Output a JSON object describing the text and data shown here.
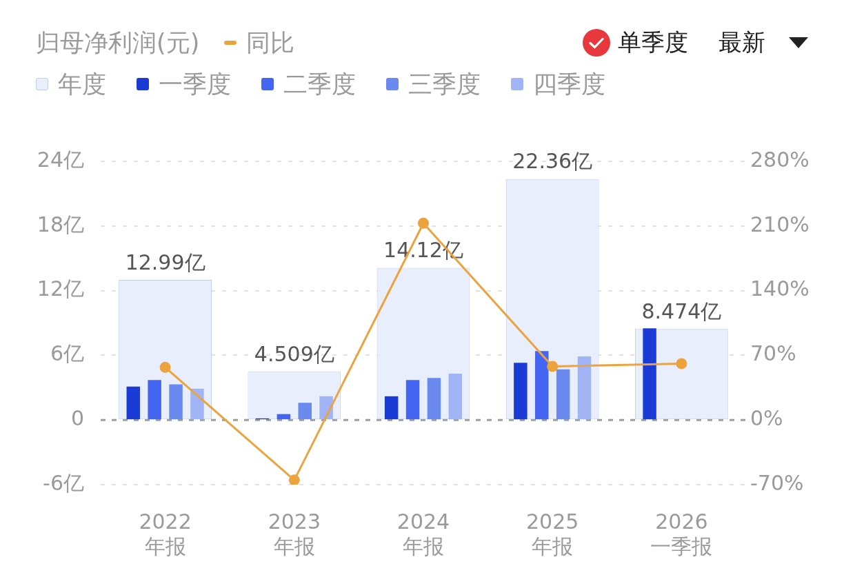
{
  "chart_data": {
    "type": "bar",
    "title": "归母净利润(元)",
    "annotations": [
      "单季度",
      "最新"
    ],
    "categories": [
      "2022\n年报",
      "2023\n年报",
      "2024\n年报",
      "2025\n年报",
      "2026\n一季报"
    ],
    "series": [
      {
        "name": "年度",
        "color": "#e8eefc",
        "values": [
          12.99,
          4.509,
          14.12,
          22.36,
          8.474
        ],
        "value_labels": [
          "12.99亿",
          "4.509亿",
          "14.12亿",
          "22.36亿",
          "8.474亿"
        ]
      },
      {
        "name": "一季度",
        "color": "#1b3bd6",
        "values": [
          3.1,
          0.15,
          2.2,
          5.3,
          8.5
        ]
      },
      {
        "name": "二季度",
        "color": "#4465f1",
        "values": [
          3.7,
          0.55,
          3.7,
          6.4,
          null
        ]
      },
      {
        "name": "三季度",
        "color": "#6b8aef",
        "values": [
          3.3,
          1.6,
          3.9,
          4.7,
          null
        ]
      },
      {
        "name": "四季度",
        "color": "#a0b4f6",
        "values": [
          2.9,
          2.2,
          4.3,
          5.9,
          null
        ]
      },
      {
        "name": "同比",
        "type": "line",
        "axis": "y2",
        "color": "#eca33e",
        "values": [
          57,
          -65,
          213,
          58,
          61
        ]
      }
    ],
    "ylim": [
      -6,
      24
    ],
    "yticks": [
      {
        "value": -6,
        "label": "-6亿"
      },
      0,
      {
        "value": 6,
        "label": "6亿"
      },
      {
        "value": 12,
        "label": "12亿"
      },
      {
        "value": 18,
        "label": "18亿"
      },
      {
        "value": 24,
        "label": "24亿"
      }
    ],
    "y2lim": [
      -70,
      280
    ],
    "y2ticks": [
      {
        "value": -70,
        "label": "-70%"
      },
      {
        "value": 0,
        "label": "0%"
      },
      {
        "value": 70,
        "label": "70%"
      },
      {
        "value": 140,
        "label": "140%"
      },
      {
        "value": 210,
        "label": "210%"
      },
      {
        "value": 280,
        "label": "280%"
      }
    ],
    "ref_lines": [
      {
        "axis": "y",
        "value": 0,
        "color": "#9c9c9c",
        "line_style": "dashed"
      }
    ],
    "grid": "y",
    "legend": "top left",
    "marker": "circle"
  }
}
